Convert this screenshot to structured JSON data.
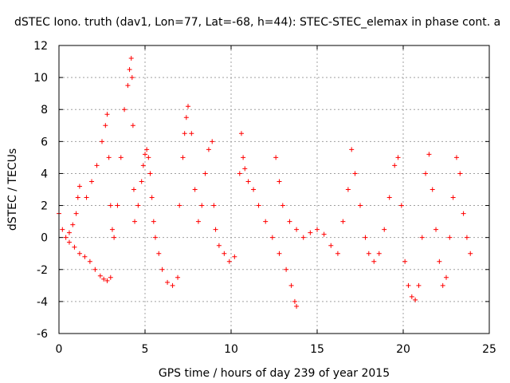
{
  "chart_data": {
    "type": "scatter",
    "title": "dSTEC Iono. truth (dav1, Lon=77, Lat=-68, h=44): STEC-STEC_elemax in phase cont. a",
    "xlabel": "GPS time / hours of day 239 of year 2015",
    "ylabel": "dSTEC  / TECUs",
    "xlim": [
      0,
      25
    ],
    "ylim": [
      -6,
      12
    ],
    "x_ticks": [
      "0",
      "5",
      "10",
      "15",
      "20",
      "25"
    ],
    "y_ticks": [
      "-6",
      "-4",
      "-2",
      "0",
      "2",
      "4",
      "6",
      "8",
      "10",
      "12"
    ],
    "grid": true,
    "marker": "+",
    "color": "#ff0000",
    "series": [
      {
        "x": [
          0.0,
          0.2,
          0.4,
          0.6,
          0.8,
          1.0,
          1.1,
          1.2,
          0.6,
          0.9,
          1.2,
          1.5,
          1.8,
          2.1,
          2.4,
          2.6,
          2.8,
          3.0,
          1.6,
          1.9,
          2.2,
          2.5,
          2.7,
          2.8,
          2.9,
          3.0,
          3.1,
          3.2,
          3.4,
          3.6,
          3.8,
          4.0,
          4.1,
          4.2,
          4.25,
          4.3,
          4.35,
          4.4,
          4.6,
          4.8,
          4.9,
          5.0,
          5.1,
          5.2,
          5.3,
          5.4,
          5.5,
          5.6,
          5.8,
          6.0,
          6.3,
          6.6,
          6.9,
          7.0,
          7.2,
          7.3,
          7.4,
          7.5,
          7.7,
          7.9,
          8.1,
          8.3,
          8.5,
          8.7,
          8.9,
          9.0,
          9.1,
          9.3,
          9.6,
          9.9,
          10.2,
          10.5,
          10.6,
          10.7,
          10.8,
          11.0,
          11.3,
          11.6,
          12.0,
          12.4,
          12.8,
          13.2,
          13.5,
          13.7,
          13.8,
          12.6,
          12.8,
          13.0,
          13.4,
          13.8,
          14.2,
          14.6,
          15.0,
          15.4,
          15.8,
          16.2,
          16.5,
          16.8,
          17.0,
          17.2,
          17.5,
          17.8,
          18.0,
          18.3,
          18.6,
          18.9,
          19.2,
          19.5,
          19.7,
          19.9,
          20.1,
          20.3,
          20.5,
          20.7,
          20.9,
          21.1,
          21.3,
          21.5,
          21.7,
          21.9,
          22.1,
          22.3,
          22.5,
          22.7,
          22.9,
          23.1,
          23.3,
          23.5,
          23.7,
          23.9
        ],
        "y": [
          1.5,
          0.5,
          0.0,
          0.3,
          0.8,
          1.5,
          2.5,
          3.2,
          -0.3,
          -0.6,
          -1.0,
          -1.2,
          -1.5,
          -2.0,
          -2.4,
          -2.6,
          -2.7,
          -2.5,
          2.5,
          3.5,
          4.5,
          6.0,
          7.0,
          7.7,
          5.0,
          2.0,
          0.5,
          0.0,
          2.0,
          5.0,
          8.0,
          9.5,
          10.5,
          11.2,
          10.0,
          7.0,
          3.0,
          1.0,
          2.0,
          3.5,
          4.5,
          5.2,
          5.5,
          5.0,
          4.0,
          2.5,
          1.0,
          0.0,
          -1.0,
          -2.0,
          -2.8,
          -3.0,
          -2.5,
          2.0,
          5.0,
          6.5,
          7.5,
          8.2,
          6.5,
          3.0,
          1.0,
          2.0,
          4.0,
          5.5,
          6.0,
          2.0,
          0.5,
          -0.5,
          -1.0,
          -1.5,
          -1.2,
          4.0,
          6.5,
          5.0,
          4.3,
          3.5,
          3.0,
          2.0,
          1.0,
          0.0,
          -1.0,
          -2.0,
          -3.0,
          -4.0,
          -4.3,
          5.0,
          3.5,
          2.0,
          1.0,
          0.5,
          0.0,
          0.3,
          0.5,
          0.2,
          -0.5,
          -1.0,
          1.0,
          3.0,
          5.5,
          4.0,
          2.0,
          0.0,
          -1.0,
          -1.5,
          -1.0,
          0.5,
          2.5,
          4.5,
          5.0,
          2.0,
          -1.5,
          -3.0,
          -3.7,
          -3.9,
          -3.0,
          0.0,
          4.0,
          5.2,
          3.0,
          0.5,
          -1.5,
          -3.0,
          -2.5,
          0.0,
          2.5,
          5.0,
          4.0,
          1.5,
          0.0,
          -1.0
        ]
      }
    ]
  }
}
